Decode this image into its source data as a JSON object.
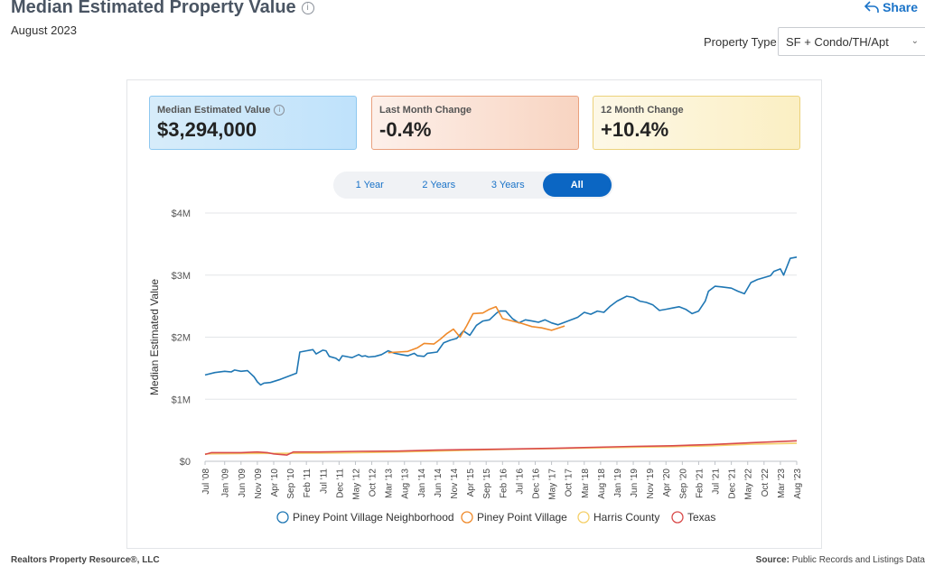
{
  "header": {
    "title": "Median Estimated Property Value",
    "info_glyph": "i",
    "subtitle": "August 2023",
    "share_label": "Share"
  },
  "property_type": {
    "label": "Property Type",
    "selected": "SF + Condo/TH/Apt"
  },
  "cards": [
    {
      "label": "Median Estimated Value",
      "value": "$3,294,000",
      "has_info": true
    },
    {
      "label": "Last Month Change",
      "value": "-0.4%"
    },
    {
      "label": "12 Month Change",
      "value": "+10.4%"
    }
  ],
  "range_tabs": [
    {
      "label": "1 Year",
      "active": false
    },
    {
      "label": "2 Years",
      "active": false
    },
    {
      "label": "3 Years",
      "active": false
    },
    {
      "label": "All",
      "active": true
    }
  ],
  "footer": {
    "left": "Realtors Property Resource®, LLC",
    "right_label": "Source:",
    "right_text": "Public Records and Listings Data"
  },
  "chart_data": {
    "type": "line",
    "ylabel": "Median Estimated Value",
    "ylim": [
      0,
      4000000
    ],
    "yticks": [
      {
        "v": 0,
        "label": "$0"
      },
      {
        "v": 1000000,
        "label": "$1M"
      },
      {
        "v": 2000000,
        "label": "$2M"
      },
      {
        "v": 3000000,
        "label": "$3M"
      },
      {
        "v": 4000000,
        "label": "$4M"
      }
    ],
    "grid": true,
    "legend_position": "bottom",
    "xlim": [
      "2008-07",
      "2023-08"
    ],
    "xticks": [
      "Jul '08",
      "Jan '09",
      "Jun '09",
      "Nov '09",
      "Apr '10",
      "Sep '10",
      "Feb '11",
      "Jul '11",
      "Dec '11",
      "May '12",
      "Oct '12",
      "Mar '13",
      "Aug '13",
      "Jan '14",
      "Jun '14",
      "Nov '14",
      "Apr '15",
      "Sep '15",
      "Feb '16",
      "Jul '16",
      "Dec '16",
      "May '17",
      "Oct '17",
      "Mar '18",
      "Aug '18",
      "Jan '19",
      "Jun '19",
      "Nov '19",
      "Apr '20",
      "Sep '20",
      "Feb '21",
      "Jul '21",
      "Dec '21",
      "May '22",
      "Oct '22",
      "Mar '23",
      "Aug '23"
    ],
    "xtick_dates": [
      "2008-07",
      "2009-01",
      "2009-06",
      "2009-11",
      "2010-04",
      "2010-09",
      "2011-02",
      "2011-07",
      "2011-12",
      "2012-05",
      "2012-10",
      "2013-03",
      "2013-08",
      "2014-01",
      "2014-06",
      "2014-11",
      "2015-04",
      "2015-09",
      "2016-02",
      "2016-07",
      "2016-12",
      "2017-05",
      "2017-10",
      "2018-03",
      "2018-08",
      "2019-01",
      "2019-06",
      "2019-11",
      "2020-04",
      "2020-09",
      "2021-02",
      "2021-07",
      "2021-12",
      "2022-05",
      "2022-10",
      "2023-03",
      "2023-08"
    ],
    "series": [
      {
        "name": "Piney Point Village Neighborhood",
        "color": "#1f77b4",
        "points": [
          [
            "2008-07",
            1390000
          ],
          [
            "2008-10",
            1430000
          ],
          [
            "2009-01",
            1450000
          ],
          [
            "2009-03",
            1440000
          ],
          [
            "2009-04",
            1470000
          ],
          [
            "2009-06",
            1450000
          ],
          [
            "2009-08",
            1460000
          ],
          [
            "2009-09",
            1410000
          ],
          [
            "2009-10",
            1360000
          ],
          [
            "2009-11",
            1280000
          ],
          [
            "2009-12",
            1230000
          ],
          [
            "2010-01",
            1260000
          ],
          [
            "2010-03",
            1270000
          ],
          [
            "2010-06",
            1320000
          ],
          [
            "2010-09",
            1380000
          ],
          [
            "2010-11",
            1420000
          ],
          [
            "2010-12",
            1760000
          ],
          [
            "2011-02",
            1780000
          ],
          [
            "2011-04",
            1800000
          ],
          [
            "2011-05",
            1730000
          ],
          [
            "2011-07",
            1790000
          ],
          [
            "2011-08",
            1780000
          ],
          [
            "2011-09",
            1690000
          ],
          [
            "2011-11",
            1660000
          ],
          [
            "2011-12",
            1620000
          ],
          [
            "2012-01",
            1700000
          ],
          [
            "2012-03",
            1680000
          ],
          [
            "2012-04",
            1670000
          ],
          [
            "2012-06",
            1720000
          ],
          [
            "2012-07",
            1690000
          ],
          [
            "2012-08",
            1700000
          ],
          [
            "2012-09",
            1680000
          ],
          [
            "2012-11",
            1690000
          ],
          [
            "2013-01",
            1720000
          ],
          [
            "2013-03",
            1780000
          ],
          [
            "2013-05",
            1740000
          ],
          [
            "2013-07",
            1720000
          ],
          [
            "2013-09",
            1700000
          ],
          [
            "2013-11",
            1740000
          ],
          [
            "2013-12",
            1700000
          ],
          [
            "2014-02",
            1690000
          ],
          [
            "2014-03",
            1740000
          ],
          [
            "2014-06",
            1760000
          ],
          [
            "2014-08",
            1910000
          ],
          [
            "2014-10",
            1950000
          ],
          [
            "2014-12",
            1980000
          ],
          [
            "2015-02",
            2100000
          ],
          [
            "2015-04",
            2030000
          ],
          [
            "2015-06",
            2190000
          ],
          [
            "2015-08",
            2260000
          ],
          [
            "2015-10",
            2280000
          ],
          [
            "2015-12",
            2380000
          ],
          [
            "2016-01",
            2420000
          ],
          [
            "2016-03",
            2420000
          ],
          [
            "2016-05",
            2300000
          ],
          [
            "2016-07",
            2230000
          ],
          [
            "2016-09",
            2280000
          ],
          [
            "2016-11",
            2260000
          ],
          [
            "2017-01",
            2240000
          ],
          [
            "2017-03",
            2280000
          ],
          [
            "2017-05",
            2230000
          ],
          [
            "2017-07",
            2200000
          ],
          [
            "2017-09",
            2240000
          ],
          [
            "2017-11",
            2280000
          ],
          [
            "2018-01",
            2320000
          ],
          [
            "2018-03",
            2400000
          ],
          [
            "2018-05",
            2370000
          ],
          [
            "2018-07",
            2420000
          ],
          [
            "2018-09",
            2400000
          ],
          [
            "2018-11",
            2500000
          ],
          [
            "2019-01",
            2580000
          ],
          [
            "2019-04",
            2660000
          ],
          [
            "2019-06",
            2640000
          ],
          [
            "2019-08",
            2580000
          ],
          [
            "2019-10",
            2560000
          ],
          [
            "2019-12",
            2520000
          ],
          [
            "2020-02",
            2430000
          ],
          [
            "2020-04",
            2450000
          ],
          [
            "2020-06",
            2470000
          ],
          [
            "2020-08",
            2490000
          ],
          [
            "2020-10",
            2450000
          ],
          [
            "2020-12",
            2380000
          ],
          [
            "2021-02",
            2420000
          ],
          [
            "2021-04",
            2580000
          ],
          [
            "2021-05",
            2740000
          ],
          [
            "2021-07",
            2820000
          ],
          [
            "2021-09",
            2810000
          ],
          [
            "2021-12",
            2790000
          ],
          [
            "2022-02",
            2740000
          ],
          [
            "2022-04",
            2700000
          ],
          [
            "2022-06",
            2880000
          ],
          [
            "2022-08",
            2930000
          ],
          [
            "2022-10",
            2960000
          ],
          [
            "2022-12",
            2990000
          ],
          [
            "2023-01",
            3060000
          ],
          [
            "2023-03",
            3100000
          ],
          [
            "2023-04",
            3000000
          ],
          [
            "2023-06",
            3270000
          ],
          [
            "2023-08",
            3290000
          ]
        ]
      },
      {
        "name": "Piney Point Village",
        "color": "#ef8a2b",
        "points": [
          [
            "2013-03",
            1750000
          ],
          [
            "2013-06",
            1760000
          ],
          [
            "2013-09",
            1770000
          ],
          [
            "2013-12",
            1830000
          ],
          [
            "2014-02",
            1900000
          ],
          [
            "2014-05",
            1890000
          ],
          [
            "2014-07",
            1970000
          ],
          [
            "2014-09",
            2060000
          ],
          [
            "2014-11",
            2130000
          ],
          [
            "2015-01",
            2000000
          ],
          [
            "2015-03",
            2180000
          ],
          [
            "2015-05",
            2380000
          ],
          [
            "2015-08",
            2390000
          ],
          [
            "2015-10",
            2450000
          ],
          [
            "2015-12",
            2490000
          ],
          [
            "2016-02",
            2300000
          ],
          [
            "2016-05",
            2260000
          ],
          [
            "2016-08",
            2220000
          ],
          [
            "2016-11",
            2170000
          ],
          [
            "2017-02",
            2150000
          ],
          [
            "2017-05",
            2110000
          ],
          [
            "2017-09",
            2180000
          ]
        ]
      },
      {
        "name": "Harris County",
        "color": "#f5d06a",
        "points": [
          [
            "2008-07",
            120000
          ],
          [
            "2009-06",
            125000
          ],
          [
            "2010-06",
            128000
          ],
          [
            "2011-06",
            132000
          ],
          [
            "2012-06",
            138000
          ],
          [
            "2013-06",
            150000
          ],
          [
            "2014-06",
            165000
          ],
          [
            "2015-06",
            180000
          ],
          [
            "2016-06",
            195000
          ],
          [
            "2017-06",
            205000
          ],
          [
            "2018-06",
            215000
          ],
          [
            "2019-06",
            225000
          ],
          [
            "2020-06",
            235000
          ],
          [
            "2021-06",
            250000
          ],
          [
            "2022-06",
            275000
          ],
          [
            "2023-08",
            290000
          ]
        ]
      },
      {
        "name": "Texas",
        "color": "#d94b4b",
        "points": [
          [
            "2008-07",
            110000
          ],
          [
            "2008-09",
            140000
          ],
          [
            "2009-06",
            140000
          ],
          [
            "2009-11",
            150000
          ],
          [
            "2010-02",
            140000
          ],
          [
            "2010-04",
            120000
          ],
          [
            "2010-08",
            100000
          ],
          [
            "2010-10",
            150000
          ],
          [
            "2011-06",
            150000
          ],
          [
            "2012-06",
            160000
          ],
          [
            "2013-06",
            165000
          ],
          [
            "2014-06",
            180000
          ],
          [
            "2015-06",
            190000
          ],
          [
            "2016-06",
            200000
          ],
          [
            "2017-06",
            210000
          ],
          [
            "2018-06",
            225000
          ],
          [
            "2019-06",
            240000
          ],
          [
            "2020-06",
            250000
          ],
          [
            "2021-06",
            270000
          ],
          [
            "2022-06",
            300000
          ],
          [
            "2023-08",
            330000
          ]
        ]
      }
    ]
  }
}
